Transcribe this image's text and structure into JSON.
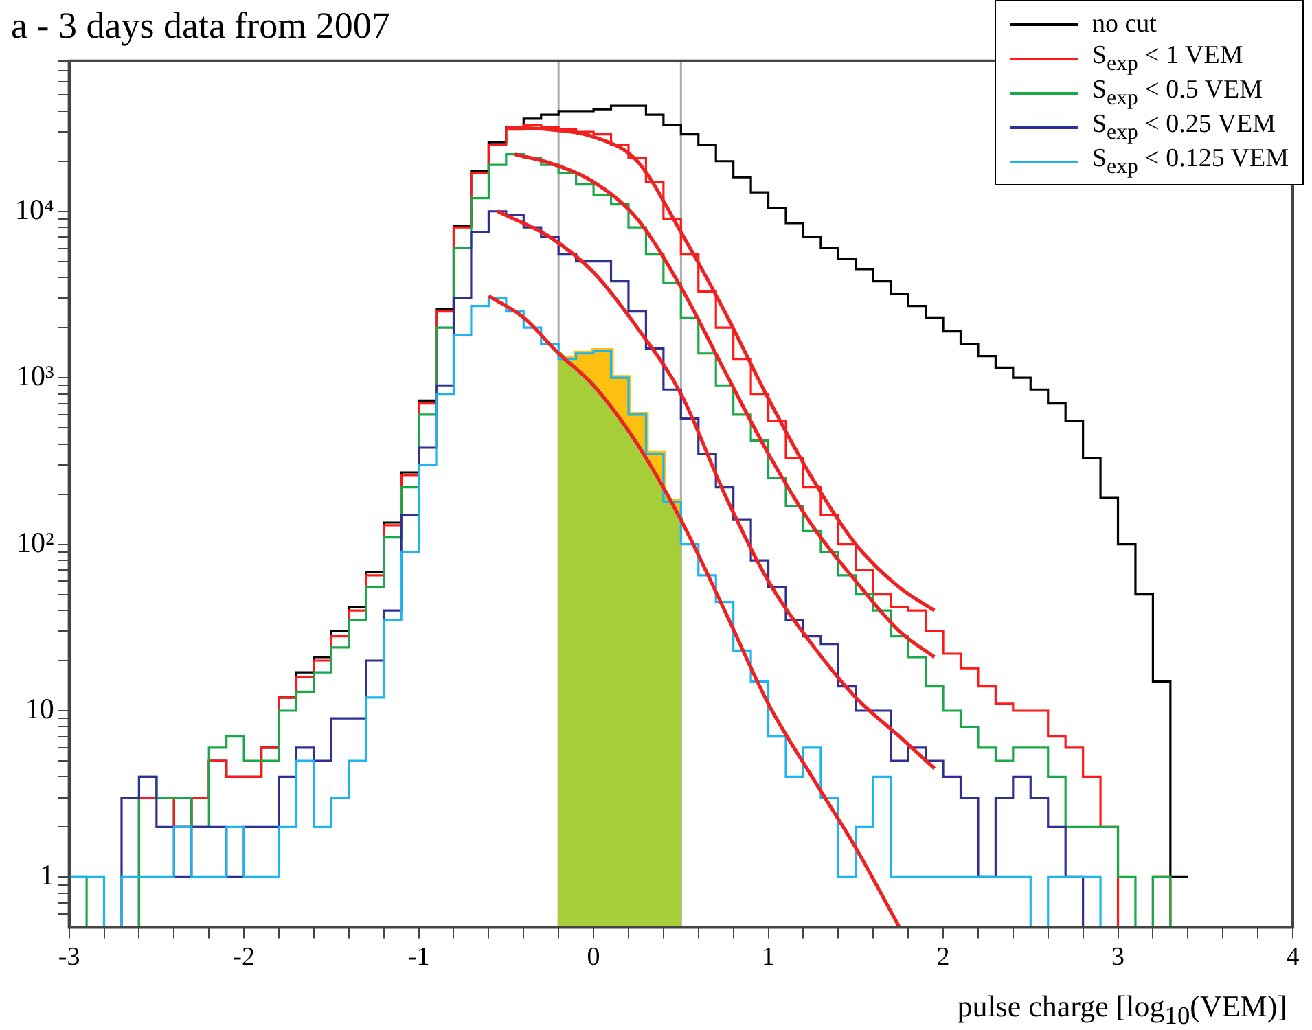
{
  "chart_data": {
    "type": "histogram",
    "title": "a - 3 days data from 2007",
    "xlabel": "pulse charge [log$_{10}$(VEM)]",
    "bins": [
      -3.0,
      -2.9,
      -2.8,
      -2.7,
      -2.6,
      -2.5,
      -2.4,
      -2.3,
      -2.2,
      -2.1,
      -2.0,
      -1.9,
      -1.8,
      -1.7,
      -1.6,
      -1.5,
      -1.4,
      -1.3,
      -1.2,
      -1.1,
      -1.0,
      -0.9,
      -0.8,
      -0.7,
      -0.6,
      -0.5,
      -0.4,
      -0.3,
      -0.2,
      -0.1,
      0.0,
      0.1,
      0.2,
      0.3,
      0.4,
      0.5,
      0.6,
      0.7,
      0.8,
      0.9,
      1.0,
      1.1,
      1.2,
      1.3,
      1.4,
      1.5,
      1.6,
      1.7,
      1.8,
      1.9,
      2.0,
      2.1,
      2.2,
      2.3,
      2.4,
      2.5,
      2.6,
      2.7,
      2.8,
      2.9,
      3.0,
      3.1,
      3.2,
      3.3,
      3.4
    ],
    "series": [
      {
        "type": "area",
        "color": "#fdc010",
        "x": [
          -0.2,
          -0.1,
          -0.1,
          0,
          0,
          0.1,
          0.1,
          0.2,
          0.2,
          0.3,
          0.3,
          0.4,
          0.4,
          0.5
        ],
        "values": [
          1300,
          1300,
          1400,
          1400,
          1450,
          1450,
          1000,
          1000,
          600,
          600,
          350,
          350,
          180,
          180
        ]
      },
      {
        "type": "area",
        "color": "#a6ce39",
        "x": [
          -0.2,
          0,
          0.25,
          0.5
        ],
        "values": [
          1400,
          900,
          400,
          140
        ]
      },
      {
        "name": "no cut",
        "color": "#000000",
        "values": [
          null,
          null,
          null,
          null,
          3,
          3,
          2,
          3,
          5,
          4,
          4,
          6,
          12,
          17,
          21,
          30,
          42,
          68,
          135,
          270,
          730,
          2600,
          8200,
          17500,
          26000,
          32000,
          36000,
          38000,
          40000,
          40000,
          41000,
          43000,
          43000,
          38000,
          33000,
          29000,
          25000,
          20000,
          16000,
          13000,
          10500,
          8500,
          7000,
          6000,
          5200,
          4500,
          3800,
          3200,
          2700,
          2300,
          1900,
          1600,
          1350,
          1150,
          1000,
          850,
          700,
          550,
          330,
          190,
          100,
          50,
          15,
          1
        ]
      },
      {
        "name": "S$_{exp}$ < 1 VEM",
        "color": "#ff1a1a",
        "values": [
          null,
          null,
          null,
          null,
          3,
          3,
          2,
          3,
          5,
          4,
          4,
          6,
          12,
          16,
          20,
          28,
          40,
          65,
          130,
          260,
          700,
          2500,
          8000,
          17000,
          25000,
          31000,
          33000,
          32000,
          31000,
          30000,
          29000,
          25000,
          21000,
          15000,
          9000,
          5500,
          3300,
          2000,
          1300,
          800,
          550,
          330,
          220,
          150,
          100,
          70,
          50,
          42,
          40,
          30,
          22,
          18,
          14,
          11,
          10,
          10,
          7,
          6,
          4,
          2,
          null,
          null,
          1,
          null
        ]
      },
      {
        "name": "S$_{exp}$ < 0.5 VEM",
        "color": "#1aa84a",
        "values": [
          1,
          null,
          null,
          null,
          4,
          3,
          3,
          2,
          6,
          7,
          5,
          5,
          10,
          13,
          17,
          24,
          35,
          55,
          110,
          220,
          600,
          2000,
          6000,
          12000,
          19000,
          22000,
          21000,
          19000,
          17000,
          14500,
          12500,
          11000,
          8000,
          5500,
          3700,
          2300,
          1400,
          900,
          600,
          420,
          250,
          170,
          120,
          90,
          65,
          50,
          40,
          28,
          21,
          14,
          10,
          8,
          6,
          5,
          6,
          6,
          4,
          2,
          2,
          2,
          1,
          null,
          1,
          null
        ]
      },
      {
        "name": "S$_{exp}$ < 0.25 VEM",
        "color": "#2e3192",
        "values": [
          null,
          null,
          null,
          3,
          4,
          2,
          1,
          2,
          2,
          1,
          2,
          2,
          4,
          6,
          5,
          9,
          9,
          20,
          40,
          150,
          380,
          900,
          3000,
          7500,
          10000,
          9500,
          8000,
          7000,
          5500,
          5000,
          5000,
          3800,
          2500,
          1500,
          850,
          570,
          350,
          220,
          140,
          80,
          55,
          35,
          28,
          25,
          14,
          10,
          10,
          5,
          6,
          5,
          4,
          3,
          1,
          3,
          4,
          3,
          2,
          1,
          null,
          null,
          null,
          null,
          null,
          null
        ]
      },
      {
        "name": "S$_{exp}$ < 0.125 VEM",
        "color": "#1eb4f0",
        "values": [
          1,
          1,
          null,
          1,
          1,
          1,
          2,
          1,
          1,
          2,
          1,
          1,
          2,
          5,
          2,
          3,
          5,
          12,
          35,
          90,
          300,
          800,
          1800,
          2700,
          3000,
          2500,
          2000,
          1600,
          1300,
          1400,
          1450,
          1000,
          600,
          350,
          180,
          100,
          65,
          45,
          23,
          15,
          7,
          4,
          6,
          3,
          1,
          2,
          4,
          1,
          1,
          1,
          1,
          1,
          1,
          1,
          1,
          null,
          1,
          1,
          1,
          null,
          null,
          null,
          null,
          null
        ]
      },
      {
        "type": "line",
        "color": "#ee2222",
        "x": [
          -0.5,
          -0.25,
          0,
          0.25,
          0.5,
          0.75,
          1.0,
          1.25,
          1.5,
          1.75,
          1.95
        ],
        "values": [
          32000,
          31000,
          28000,
          20000,
          7500,
          2500,
          750,
          250,
          100,
          55,
          40
        ]
      },
      {
        "type": "line",
        "color": "#ee2222",
        "x": [
          -0.45,
          -0.25,
          0,
          0.25,
          0.5,
          0.75,
          1.0,
          1.25,
          1.5,
          1.75,
          1.95
        ],
        "values": [
          22000,
          19500,
          15000,
          9000,
          3500,
          1100,
          350,
          130,
          60,
          30,
          21
        ]
      },
      {
        "type": "line",
        "color": "#ee2222",
        "x": [
          -0.55,
          -0.25,
          0,
          0.25,
          0.5,
          0.75,
          1.0,
          1.25,
          1.5,
          1.75,
          1.95
        ],
        "values": [
          10000,
          7000,
          4300,
          2000,
          800,
          200,
          60,
          25,
          12,
          7,
          4.5
        ]
      },
      {
        "type": "line",
        "color": "#ee2222",
        "x": [
          -0.6,
          -0.4,
          -0.2,
          0,
          0.25,
          0.5,
          0.75,
          1.0,
          1.25,
          1.5,
          1.75
        ],
        "values": [
          3100,
          2300,
          1400,
          900,
          400,
          140,
          40,
          11,
          4,
          1.5,
          0.5
        ]
      }
    ],
    "ref_lines": [
      {
        "axis": "x",
        "value": -0.2,
        "color": "#aaaaaa"
      },
      {
        "axis": "x",
        "value": 0.5,
        "color": "#aaaaaa"
      }
    ],
    "xlim": [
      -3,
      4
    ],
    "xticks": [
      -3,
      {
        "value": -2.8,
        "label": null
      },
      {
        "value": -2.6,
        "label": null
      },
      {
        "value": -2.4,
        "label": null
      },
      {
        "value": -2.2,
        "label": null
      },
      -2,
      {
        "value": -1.8,
        "label": null
      },
      {
        "value": -1.6,
        "label": null
      },
      {
        "value": -1.4,
        "label": null
      },
      {
        "value": -1.2,
        "label": null
      },
      -1,
      {
        "value": -0.8,
        "label": null
      },
      {
        "value": -0.6,
        "label": null
      },
      {
        "value": -0.4,
        "label": null
      },
      {
        "value": -0.2,
        "label": null
      },
      0,
      {
        "value": 0.2,
        "label": null
      },
      {
        "value": 0.4,
        "label": null
      },
      {
        "value": 0.6,
        "label": null
      },
      {
        "value": 0.8,
        "label": null
      },
      1,
      {
        "value": 1.2,
        "label": null
      },
      {
        "value": 1.4,
        "label": null
      },
      {
        "value": 1.6,
        "label": null
      },
      {
        "value": 1.8,
        "label": null
      },
      2,
      {
        "value": 2.2,
        "label": null
      },
      {
        "value": 2.4,
        "label": null
      },
      {
        "value": 2.6,
        "label": null
      },
      {
        "value": 2.8,
        "label": null
      },
      3,
      {
        "value": 3.2,
        "label": null
      },
      {
        "value": 3.4,
        "label": null
      },
      {
        "value": 3.6,
        "label": null
      },
      {
        "value": 3.8,
        "label": null
      },
      4
    ],
    "ylim": [
      0.5,
      80000
    ],
    "yticks": [
      {
        "value": 0.6,
        "label": null
      },
      {
        "value": 0.7,
        "label": null
      },
      {
        "value": 0.8,
        "label": null
      },
      {
        "value": 0.9,
        "label": null
      },
      1,
      {
        "value": 2,
        "label": null
      },
      {
        "value": 3,
        "label": null
      },
      {
        "value": 4,
        "label": null
      },
      {
        "value": 5,
        "label": null
      },
      {
        "value": 6,
        "label": null
      },
      {
        "value": 7,
        "label": null
      },
      {
        "value": 8,
        "label": null
      },
      {
        "value": 9,
        "label": null
      },
      10,
      {
        "value": 20,
        "label": null
      },
      {
        "value": 30,
        "label": null
      },
      {
        "value": 40,
        "label": null
      },
      {
        "value": 50,
        "label": null
      },
      {
        "value": 60,
        "label": null
      },
      {
        "value": 70,
        "label": null
      },
      {
        "value": 80,
        "label": null
      },
      {
        "value": 90,
        "label": null
      },
      {
        "value": 100,
        "label": "10²"
      },
      {
        "value": 200,
        "label": null
      },
      {
        "value": 300,
        "label": null
      },
      {
        "value": 400,
        "label": null
      },
      {
        "value": 500,
        "label": null
      },
      {
        "value": 600,
        "label": null
      },
      {
        "value": 700,
        "label": null
      },
      {
        "value": 800,
        "label": null
      },
      {
        "value": 900,
        "label": null
      },
      {
        "value": 1000,
        "label": "10³"
      },
      {
        "value": 2000,
        "label": null
      },
      {
        "value": 3000,
        "label": null
      },
      {
        "value": 4000,
        "label": null
      },
      {
        "value": 5000,
        "label": null
      },
      {
        "value": 6000,
        "label": null
      },
      {
        "value": 7000,
        "label": null
      },
      {
        "value": 8000,
        "label": null
      },
      {
        "value": 9000,
        "label": null
      },
      {
        "value": 10000,
        "label": "10⁴"
      },
      {
        "value": 20000,
        "label": null
      },
      {
        "value": 30000,
        "label": null
      },
      {
        "value": 40000,
        "label": null
      },
      {
        "value": 50000,
        "label": null
      },
      {
        "value": 60000,
        "label": null
      },
      {
        "value": 70000,
        "label": null
      },
      {
        "value": 80000,
        "label": null
      }
    ],
    "log": "y",
    "grid": false,
    "legend": "top right"
  }
}
